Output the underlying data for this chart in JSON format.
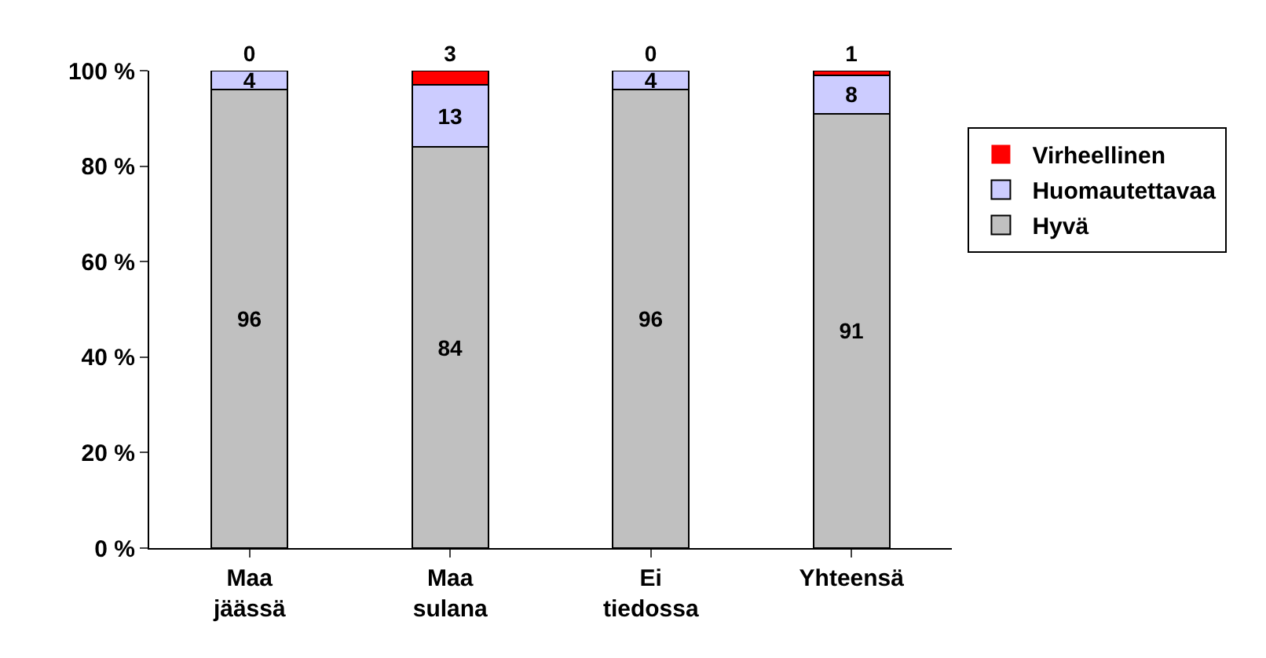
{
  "chart_data": {
    "type": "bar",
    "stacked": true,
    "categories": [
      "Maa\njäässä",
      "Maa\nsulana",
      "Ei\ntiedossa",
      "Yhteensä"
    ],
    "series": [
      {
        "name": "Hyvä",
        "color": "#c0c0c0",
        "values": [
          96,
          84,
          96,
          91
        ]
      },
      {
        "name": "Huomautettavaa",
        "color": "#ccccff",
        "values": [
          4,
          13,
          4,
          8
        ]
      },
      {
        "name": "Virheellinen",
        "color": "#ff0000",
        "values": [
          0,
          3,
          0,
          1
        ]
      }
    ],
    "ylim": [
      0,
      100
    ],
    "yticks": [
      {
        "value": 0,
        "label": "0 %"
      },
      {
        "value": 20,
        "label": "20 %"
      },
      {
        "value": 40,
        "label": "40 %"
      },
      {
        "value": 60,
        "label": "60 %"
      },
      {
        "value": 80,
        "label": "80 %"
      },
      {
        "value": 100,
        "label": "100 %"
      }
    ],
    "data_labels": true,
    "legend": "right"
  }
}
